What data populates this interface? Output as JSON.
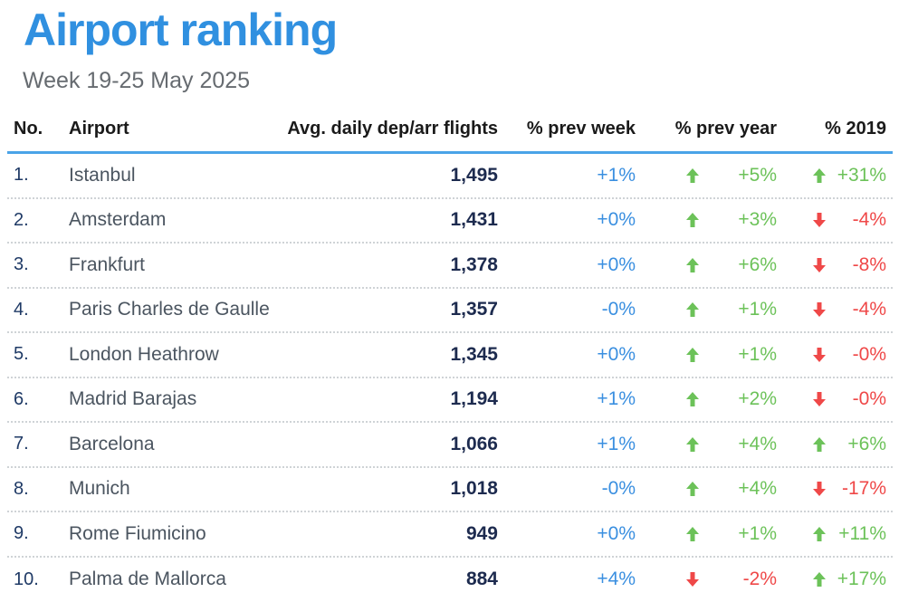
{
  "title": "Airport ranking",
  "subtitle": "Week 19-25 May 2025",
  "colors": {
    "title": "#3090e0",
    "header_rule": "#4aa3e8",
    "week_change": "#3a8fe0",
    "positive": "#6cc259",
    "negative": "#ef4848"
  },
  "columns": {
    "no": "No.",
    "airport": "Airport",
    "flights": "Avg. daily dep/arr flights",
    "prev_week": "% prev week",
    "prev_year": "% prev year",
    "vs_2019": "% 2019"
  },
  "rows": [
    {
      "no": "1.",
      "airport": "Istanbul",
      "flights": "1,495",
      "prev_week": "+1%",
      "prev_year": "+5%",
      "prev_year_dir": "up",
      "vs_2019": "+31%",
      "vs_2019_dir": "up"
    },
    {
      "no": "2.",
      "airport": "Amsterdam",
      "flights": "1,431",
      "prev_week": "+0%",
      "prev_year": "+3%",
      "prev_year_dir": "up",
      "vs_2019": "-4%",
      "vs_2019_dir": "down"
    },
    {
      "no": "3.",
      "airport": "Frankfurt",
      "flights": "1,378",
      "prev_week": "+0%",
      "prev_year": "+6%",
      "prev_year_dir": "up",
      "vs_2019": "-8%",
      "vs_2019_dir": "down"
    },
    {
      "no": "4.",
      "airport": "Paris Charles de Gaulle",
      "flights": "1,357",
      "prev_week": "-0%",
      "prev_year": "+1%",
      "prev_year_dir": "up",
      "vs_2019": "-4%",
      "vs_2019_dir": "down"
    },
    {
      "no": "5.",
      "airport": "London Heathrow",
      "flights": "1,345",
      "prev_week": "+0%",
      "prev_year": "+1%",
      "prev_year_dir": "up",
      "vs_2019": "-0%",
      "vs_2019_dir": "down"
    },
    {
      "no": "6.",
      "airport": "Madrid Barajas",
      "flights": "1,194",
      "prev_week": "+1%",
      "prev_year": "+2%",
      "prev_year_dir": "up",
      "vs_2019": "-0%",
      "vs_2019_dir": "down"
    },
    {
      "no": "7.",
      "airport": "Barcelona",
      "flights": "1,066",
      "prev_week": "+1%",
      "prev_year": "+4%",
      "prev_year_dir": "up",
      "vs_2019": "+6%",
      "vs_2019_dir": "up"
    },
    {
      "no": "8.",
      "airport": "Munich",
      "flights": "1,018",
      "prev_week": "-0%",
      "prev_year": "+4%",
      "prev_year_dir": "up",
      "vs_2019": "-17%",
      "vs_2019_dir": "down"
    },
    {
      "no": "9.",
      "airport": "Rome Fiumicino",
      "flights": "949",
      "prev_week": "+0%",
      "prev_year": "+1%",
      "prev_year_dir": "up",
      "vs_2019": "+11%",
      "vs_2019_dir": "up"
    },
    {
      "no": "10.",
      "airport": "Palma de Mallorca",
      "flights": "884",
      "prev_week": "+4%",
      "prev_year": "-2%",
      "prev_year_dir": "down",
      "vs_2019": "+17%",
      "vs_2019_dir": "up"
    }
  ]
}
